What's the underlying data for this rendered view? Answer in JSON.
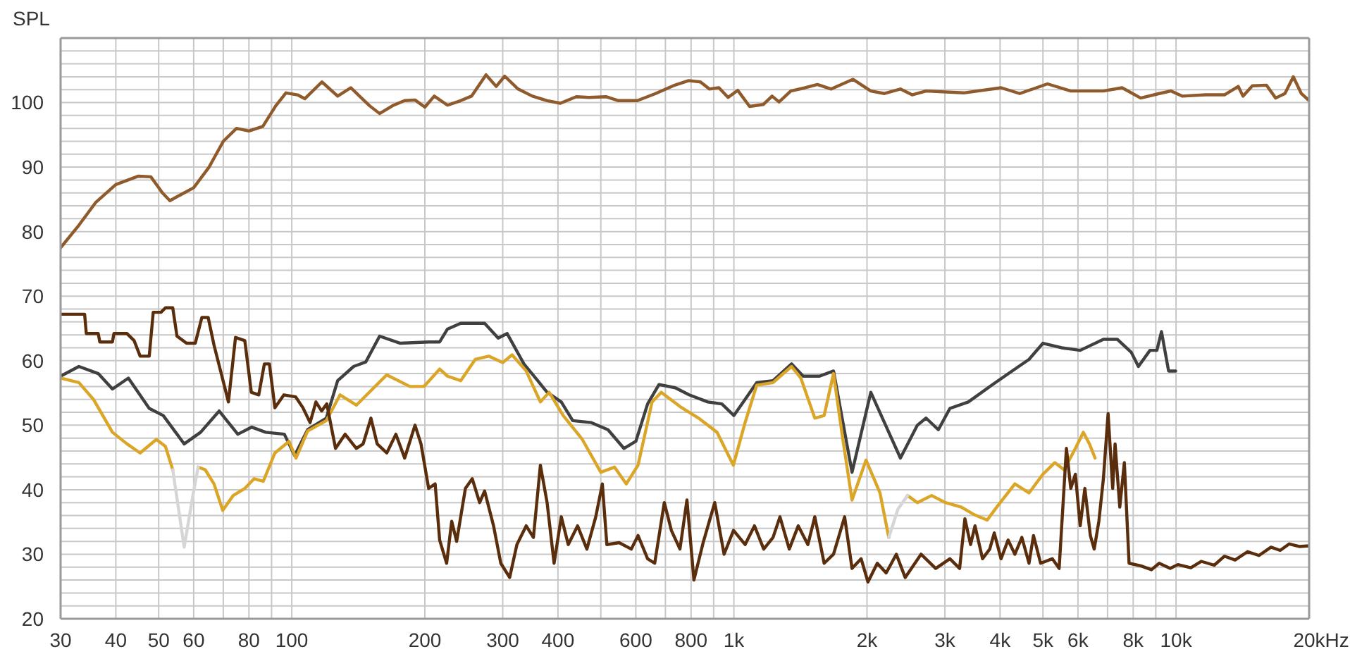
{
  "chart_data": {
    "type": "line",
    "ylabel": "SPL",
    "xlabel": "Hz",
    "log": "x",
    "grid": true,
    "marker": "none",
    "line_style": "solid",
    "xlim": [
      30,
      20000
    ],
    "ylim": [
      20,
      110
    ],
    "xticks": [
      30,
      40,
      50,
      60,
      {
        "value": 70,
        "label": null
      },
      80,
      {
        "value": 90,
        "label": null
      },
      100,
      200,
      300,
      400,
      {
        "value": 500,
        "label": null
      },
      600,
      {
        "value": 700,
        "label": null
      },
      800,
      {
        "value": 900,
        "label": null
      },
      {
        "value": 1000,
        "label": "1k"
      },
      {
        "value": 2000,
        "label": "2k"
      },
      {
        "value": 3000,
        "label": "3k"
      },
      {
        "value": 4000,
        "label": "4k"
      },
      {
        "value": 5000,
        "label": "5k"
      },
      {
        "value": 6000,
        "label": "6k"
      },
      {
        "value": 7000,
        "label": null
      },
      {
        "value": 8000,
        "label": "8k"
      },
      {
        "value": 9000,
        "label": null
      },
      {
        "value": 10000,
        "label": "10k"
      },
      {
        "value": 20000,
        "label": "20k"
      }
    ],
    "yticks": [
      20,
      {
        "value": 22,
        "label": null
      },
      {
        "value": 24,
        "label": null
      },
      {
        "value": 26,
        "label": null
      },
      {
        "value": 28,
        "label": null
      },
      30,
      {
        "value": 32,
        "label": null
      },
      {
        "value": 34,
        "label": null
      },
      {
        "value": 36,
        "label": null
      },
      {
        "value": 38,
        "label": null
      },
      40,
      {
        "value": 42,
        "label": null
      },
      {
        "value": 44,
        "label": null
      },
      {
        "value": 46,
        "label": null
      },
      {
        "value": 48,
        "label": null
      },
      50,
      {
        "value": 52,
        "label": null
      },
      {
        "value": 54,
        "label": null
      },
      {
        "value": 56,
        "label": null
      },
      {
        "value": 58,
        "label": null
      },
      60,
      {
        "value": 62,
        "label": null
      },
      {
        "value": 64,
        "label": null
      },
      {
        "value": 66,
        "label": null
      },
      {
        "value": 68,
        "label": null
      },
      70,
      {
        "value": 72,
        "label": null
      },
      {
        "value": 74,
        "label": null
      },
      {
        "value": 76,
        "label": null
      },
      {
        "value": 78,
        "label": null
      },
      80,
      {
        "value": 82,
        "label": null
      },
      {
        "value": 84,
        "label": null
      },
      {
        "value": 86,
        "label": null
      },
      {
        "value": 88,
        "label": null
      },
      90,
      {
        "value": 92,
        "label": null
      },
      {
        "value": 94,
        "label": null
      },
      {
        "value": 96,
        "label": null
      },
      {
        "value": 98,
        "label": null
      },
      100,
      {
        "value": 102,
        "label": null
      },
      {
        "value": 104,
        "label": null
      },
      {
        "value": 106,
        "label": null
      },
      {
        "value": 108,
        "label": null
      }
    ],
    "series": [
      {
        "color": "#8f5a2c",
        "x": [
          30,
          33,
          36,
          40,
          45,
          48,
          51,
          53,
          56,
          60,
          65,
          70,
          75,
          80,
          86,
          92,
          97,
          103,
          107,
          117,
          127,
          136,
          150,
          158,
          170,
          180,
          190,
          200,
          210,
          225,
          241,
          255,
          275,
          290,
          303,
          325,
          350,
          378,
          405,
          440,
          470,
          515,
          548,
          605,
          665,
          735,
          790,
          840,
          880,
          925,
          970,
          1020,
          1085,
          1165,
          1220,
          1265,
          1345,
          1450,
          1545,
          1660,
          1860,
          2040,
          2190,
          2380,
          2530,
          2720,
          3310,
          4020,
          4430,
          5120,
          5780,
          6850,
          7550,
          8320,
          9160,
          9730,
          10340,
          11680,
          12870,
          13830,
          14170,
          14880,
          16010,
          16800,
          17630,
          18420,
          19200,
          20000
        ],
        "values": [
          77.5,
          81,
          84.5,
          87.3,
          88.6,
          88.5,
          86,
          84.8,
          85.7,
          86.8,
          90,
          94,
          96,
          95.6,
          96.3,
          99.5,
          101.5,
          101.2,
          100.6,
          103.2,
          101,
          102.3,
          99.5,
          98.3,
          99.6,
          100.3,
          100.4,
          99.3,
          101,
          99.6,
          100.3,
          101,
          104.3,
          102.5,
          104.1,
          102.1,
          101,
          100.3,
          99.9,
          100.9,
          100.8,
          100.9,
          100.3,
          100.3,
          101.4,
          102.7,
          103.4,
          103.2,
          102.1,
          102.3,
          100.8,
          101.9,
          99.4,
          99.7,
          101,
          100.1,
          101.8,
          102.3,
          102.8,
          102.1,
          103.6,
          101.8,
          101.4,
          102.1,
          101.2,
          101.8,
          101.5,
          102.3,
          101.4,
          102.9,
          101.8,
          101.8,
          102.3,
          100.7,
          101.4,
          101.8,
          101,
          101.2,
          101.2,
          102.5,
          101,
          102.6,
          102.7,
          100.7,
          101.4,
          104,
          101.4,
          100.3
        ]
      },
      {
        "color": "#404040",
        "x": [
          30,
          33,
          36.5,
          39.3,
          42.7,
          47.6,
          51.2,
          57.1,
          62.2,
          68.5,
          75.5,
          81.2,
          87.3,
          96.2,
          101.5,
          108.6,
          119.7,
          127,
          138,
          147,
          158,
          176,
          204,
          216,
          225,
          241,
          273,
          293,
          307,
          335,
          360,
          378,
          407,
          432,
          476,
          519,
          564,
          600,
          638,
          677,
          737,
          792,
          873,
          939,
          1000,
          1060,
          1126,
          1226,
          1350,
          1434,
          1562,
          1680,
          1850,
          2040,
          2190,
          2380,
          2600,
          2720,
          2900,
          3080,
          3390,
          3830,
          4320,
          4650,
          5000,
          5510,
          6070,
          6850,
          7370,
          7920,
          8220,
          8730,
          9050,
          9270,
          9620,
          9980
        ],
        "values": [
          57.6,
          59.1,
          58,
          55.6,
          57.3,
          52.6,
          51.5,
          47.1,
          48.9,
          52.2,
          48.6,
          49.7,
          48.9,
          48.6,
          45.3,
          49.3,
          51.1,
          56.9,
          59.1,
          59.8,
          63.8,
          62.7,
          62.9,
          62.9,
          64.9,
          65.8,
          65.8,
          63.5,
          64.2,
          59.5,
          56.9,
          55.1,
          53.6,
          50.7,
          50.4,
          49.3,
          46.4,
          47.5,
          53.3,
          56.3,
          55.8,
          54.7,
          53.6,
          53.3,
          51.5,
          54,
          56.6,
          56.9,
          59.5,
          57.6,
          57.6,
          58.4,
          42.7,
          55.1,
          50.4,
          44.9,
          50,
          51.1,
          49.3,
          52.6,
          53.6,
          56.2,
          58.7,
          60.2,
          62.7,
          62,
          61.6,
          63.3,
          63.3,
          61.3,
          59.1,
          61.6,
          61.6,
          64.5,
          58.4,
          58.4
        ]
      },
      {
        "color": "#dba628",
        "x": [
          30,
          33,
          35.6,
          39.3,
          42.4,
          45.4,
          49.4,
          51.8,
          53.8,
          57,
          61.4,
          63.7,
          66.7,
          69.8,
          73.7,
          78.3,
          82.2,
          86.2,
          91.6,
          98.6,
          102.2,
          108.6,
          119.7,
          128.6,
          140,
          164,
          185,
          199,
          216,
          225,
          241,
          260,
          279,
          300,
          315,
          339,
          365,
          382,
          411,
          454,
          500,
          537,
          571,
          607,
          653,
          685,
          755,
          832,
          916,
          997,
          1060,
          1126,
          1226,
          1350,
          1417,
          1524,
          1600,
          1680,
          1760,
          1850,
          1990,
          2140,
          2240,
          2350,
          2470,
          2600,
          2800,
          3010,
          3270,
          3480,
          3740,
          3930,
          4320,
          4650,
          5000,
          5320,
          5580,
          5920,
          6170,
          6370,
          6560
        ],
        "values": [
          57.3,
          56.6,
          54,
          48.9,
          47.1,
          45.7,
          47.8,
          46.7,
          43.1,
          null,
          43.5,
          43.1,
          40.9,
          36.8,
          39.1,
          40.2,
          41.7,
          41.3,
          45.7,
          47.5,
          44.9,
          49.1,
          50.7,
          54.7,
          53.1,
          57.8,
          56,
          56,
          58.7,
          57.6,
          56.9,
          60.2,
          60.7,
          59.7,
          60.9,
          58.4,
          53.6,
          55.1,
          51.5,
          47.8,
          42.7,
          43.5,
          40.9,
          43.8,
          53.6,
          55.1,
          52.9,
          51.1,
          48.9,
          43.8,
          50.4,
          56.2,
          56.6,
          59.1,
          57.3,
          51.1,
          51.5,
          58,
          48.2,
          38.4,
          44.6,
          39.5,
          32.6,
          null,
          39.1,
          38,
          39.1,
          38,
          37.3,
          36.2,
          35.3,
          37.3,
          40.9,
          39.5,
          42.4,
          44.2,
          43.1,
          46.4,
          48.9,
          47.1,
          44.9
        ]
      },
      {
        "color": "#d6d6d6",
        "x": [
          53.8,
          57.1,
          59.9,
          61.4,
          1000,
          2240,
          2350,
          2470
        ],
        "values": [
          43.1,
          31.1,
          39.5,
          43.5,
          null,
          32.6,
          37,
          39.1
        ]
      },
      {
        "color": "#5a2d0c",
        "x": [
          30,
          34,
          34.3,
          36.5,
          36.8,
          39.3,
          39.6,
          42.4,
          44,
          45.4,
          47.6,
          48.6,
          50.6,
          51.8,
          53.8,
          55,
          57.8,
          60.5,
          62.6,
          64.7,
          66.7,
          69.5,
          71.9,
          74.6,
          78.3,
          81,
          84.2,
          86.7,
          89,
          91.6,
          96,
          102,
          106,
          110,
          113.4,
          116.8,
          120,
          125.6,
          132,
          140,
          145,
          151,
          156,
          164,
          172,
          180,
          190,
          196,
          204,
          211,
          216,
          224,
          230,
          236,
          247,
          256,
          266,
          273,
          286,
          297,
          311,
          323,
          339,
          352,
          365,
          378,
          392,
          407,
          422,
          443,
          465,
          487,
          504,
          516,
          550,
          586,
          607,
          638,
          662,
          696,
          722,
          755,
          783,
          812,
          852,
          905,
          950,
          998,
          1060,
          1113,
          1168,
          1226,
          1271,
          1334,
          1398,
          1470,
          1524,
          1600,
          1680,
          1780,
          1850,
          1940,
          2010,
          2110,
          2210,
          2330,
          2440,
          2650,
          2860,
          3080,
          3240,
          3330,
          3430,
          3510,
          3650,
          3790,
          3880,
          4020,
          4170,
          4320,
          4480,
          4650,
          4760,
          4940,
          5250,
          5440,
          5650,
          5780,
          5920,
          6070,
          6220,
          6400,
          6530,
          6690,
          6850,
          7020,
          7190,
          7280,
          7460,
          7640,
          7830,
          8320,
          8800,
          9160,
          9700,
          10100,
          10800,
          11400,
          12200,
          12870,
          13600,
          14520,
          15400,
          16400,
          17200,
          18030,
          19000,
          20000
        ],
        "values": [
          67.2,
          67.2,
          64.2,
          64.2,
          62.9,
          62.9,
          64.2,
          64.2,
          63.1,
          60.7,
          60.7,
          67.5,
          67.5,
          68.2,
          68.2,
          63.8,
          62.7,
          62.7,
          66.7,
          66.7,
          62.4,
          57.6,
          53.6,
          63.6,
          63.1,
          55.1,
          54.7,
          59.5,
          59.5,
          52.7,
          54.7,
          54.4,
          52.7,
          50.4,
          53.6,
          52.2,
          53.3,
          46.4,
          48.6,
          46.4,
          47.1,
          51.1,
          47.1,
          45.7,
          48.6,
          44.9,
          50,
          47.1,
          40.2,
          40.9,
          32.2,
          28.6,
          35.1,
          32,
          40.2,
          41.7,
          38,
          39.8,
          34.4,
          28.6,
          26.4,
          31.5,
          34.4,
          32.6,
          43.8,
          38,
          28.6,
          35.8,
          31.5,
          34.4,
          30.8,
          35.8,
          40.9,
          31.5,
          31.8,
          30.8,
          32.9,
          29.3,
          28.6,
          38,
          33.7,
          30.8,
          38.4,
          26,
          31.8,
          38,
          30,
          33.7,
          31.5,
          34.4,
          30.8,
          32.6,
          35.8,
          30.8,
          34.4,
          31.5,
          35.8,
          28.6,
          30,
          35.8,
          27.8,
          29.3,
          25.7,
          28.6,
          27.1,
          30,
          26.4,
          30,
          27.8,
          29.3,
          27.8,
          35.5,
          31.5,
          34.4,
          29.3,
          30.8,
          33.3,
          29.3,
          32.2,
          30,
          32.6,
          28.6,
          32.9,
          28.6,
          29.3,
          27.8,
          46.4,
          40.2,
          42.4,
          34.4,
          40.2,
          32.9,
          30.8,
          35.1,
          41.7,
          51.8,
          40.2,
          47.1,
          37.3,
          44.2,
          28.6,
          28.2,
          27.6,
          28.6,
          27.8,
          28.4,
          27.9,
          28.9,
          28.3,
          29.7,
          29.1,
          30.4,
          29.8,
          31.1,
          30.6,
          31.6,
          31.2,
          31.3
        ]
      }
    ]
  }
}
